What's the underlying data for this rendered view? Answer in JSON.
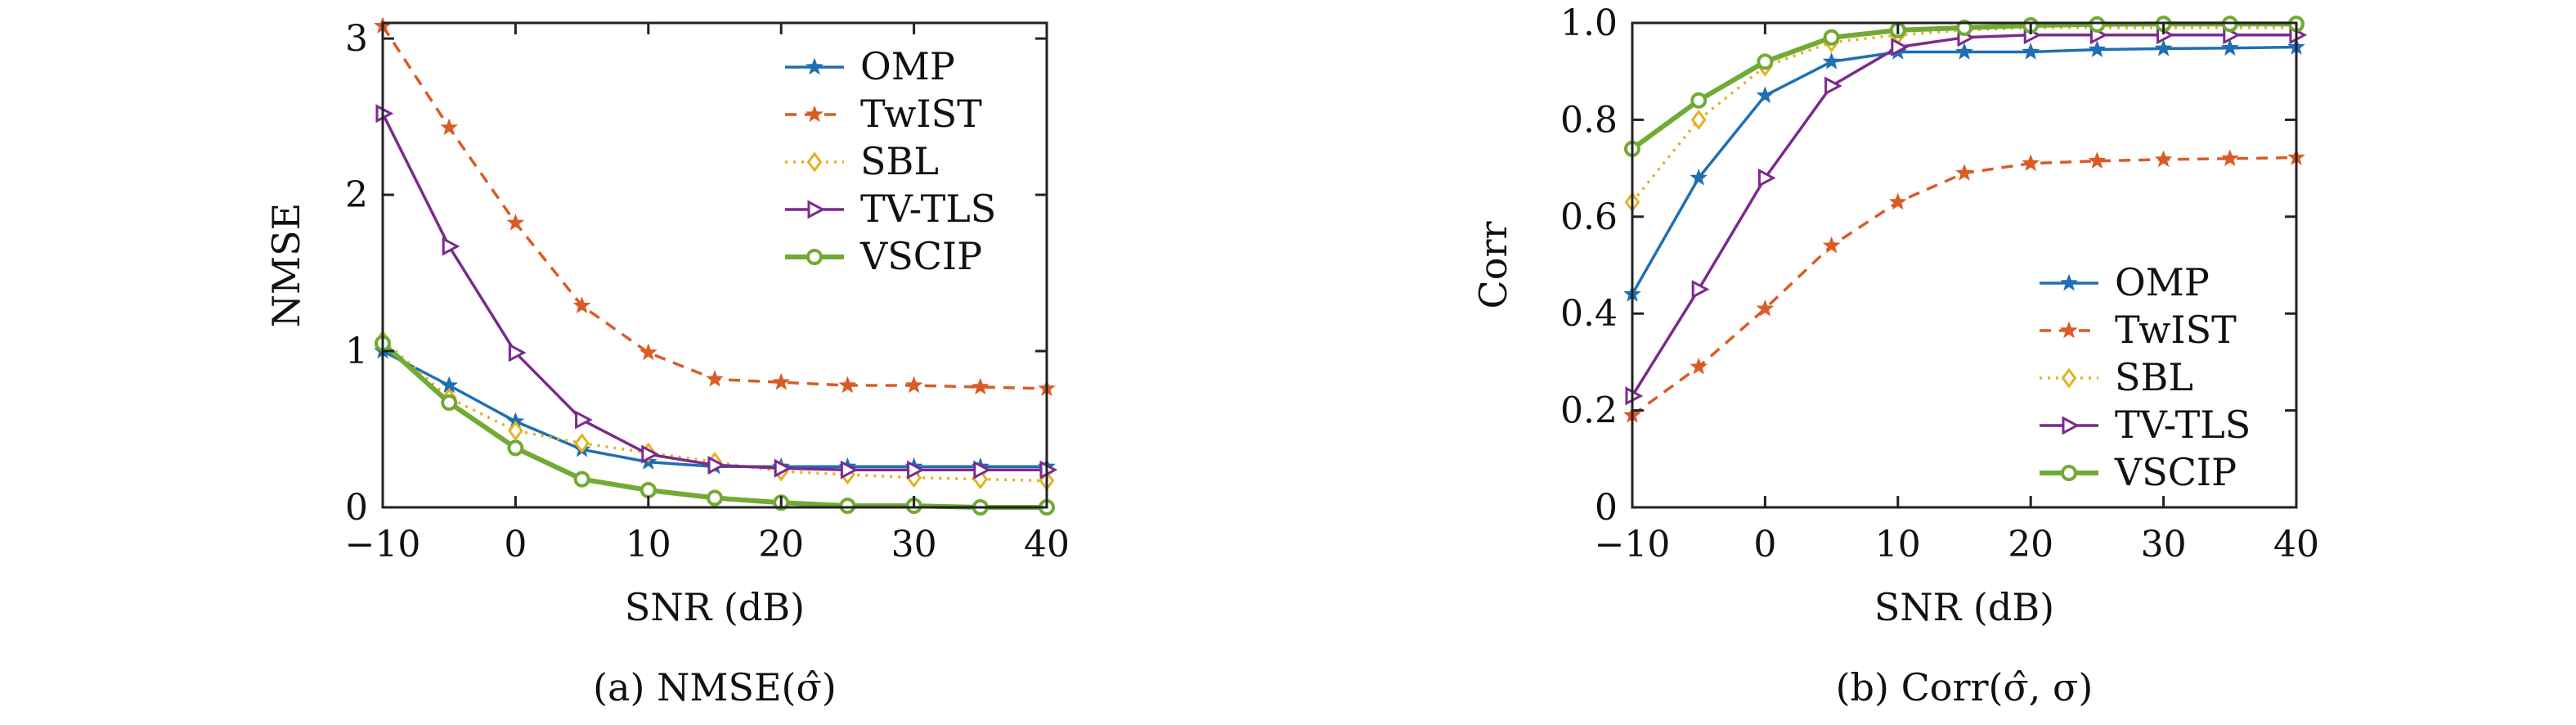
{
  "series_styles": {
    "OMP": {
      "color": "#1f6fb4",
      "dash": "",
      "marker": "star",
      "width": 3.5
    },
    "TwIST": {
      "color": "#d95c26",
      "dash": "14,10",
      "marker": "star",
      "width": 3.5
    },
    "SBL": {
      "color": "#e5b120",
      "dash": "3,7",
      "marker": "diamond",
      "width": 3.5
    },
    "TV-TLS": {
      "color": "#7b2a8e",
      "dash": "",
      "marker": "triangle",
      "width": 3.5
    },
    "VSCIP": {
      "color": "#72aa36",
      "dash": "",
      "marker": "circle",
      "width": 6
    }
  },
  "chart_data": [
    {
      "type": "line",
      "caption": "(a) NMSE(σ̂)",
      "xlabel": "SNR (dB)",
      "ylabel": "NMSE",
      "xlim": [
        -10,
        40
      ],
      "ylim": [
        0,
        3.1
      ],
      "xticks": [
        -10,
        0,
        10,
        20,
        30,
        40
      ],
      "xtick_labels": [
        "−10",
        "0",
        "10",
        "20",
        "30",
        "40"
      ],
      "yticks": [
        0,
        1,
        2,
        3
      ],
      "ytick_labels": [
        "0",
        "1",
        "2",
        "3"
      ],
      "legend_position": "top-right",
      "x": [
        -10,
        -5,
        0,
        5,
        10,
        15,
        20,
        25,
        30,
        35,
        40
      ],
      "series": [
        {
          "name": "OMP",
          "values": [
            1.0,
            0.78,
            0.55,
            0.37,
            0.29,
            0.26,
            0.26,
            0.26,
            0.26,
            0.26,
            0.26
          ]
        },
        {
          "name": "TwIST",
          "values": [
            3.08,
            2.43,
            1.82,
            1.29,
            0.99,
            0.82,
            0.8,
            0.78,
            0.78,
            0.77,
            0.76
          ]
        },
        {
          "name": "SBL",
          "values": [
            1.07,
            0.7,
            0.49,
            0.41,
            0.35,
            0.29,
            0.23,
            0.21,
            0.19,
            0.18,
            0.17
          ]
        },
        {
          "name": "TV-TLS",
          "values": [
            2.52,
            1.67,
            0.99,
            0.56,
            0.34,
            0.27,
            0.25,
            0.24,
            0.24,
            0.24,
            0.24
          ]
        },
        {
          "name": "VSCIP",
          "values": [
            1.05,
            0.67,
            0.38,
            0.18,
            0.11,
            0.06,
            0.03,
            0.01,
            0.01,
            0.0,
            0.0
          ]
        }
      ]
    },
    {
      "type": "line",
      "caption": "(b) Corr(σ̂, σ)",
      "xlabel": "SNR (dB)",
      "ylabel": "Corr",
      "xlim": [
        -10,
        40
      ],
      "ylim": [
        0,
        1.0
      ],
      "xticks": [
        -10,
        0,
        10,
        20,
        30,
        40
      ],
      "xtick_labels": [
        "−10",
        "0",
        "10",
        "20",
        "30",
        "40"
      ],
      "yticks": [
        0,
        0.2,
        0.4,
        0.6,
        0.8,
        1.0
      ],
      "ytick_labels": [
        "0",
        "0.2",
        "0.4",
        "0.6",
        "0.8",
        "1.0"
      ],
      "legend_position": "bottom-right",
      "x": [
        -10,
        -5,
        0,
        5,
        10,
        15,
        20,
        25,
        30,
        35,
        40
      ],
      "series": [
        {
          "name": "OMP",
          "values": [
            0.44,
            0.68,
            0.85,
            0.92,
            0.94,
            0.94,
            0.94,
            0.945,
            0.947,
            0.948,
            0.95
          ]
        },
        {
          "name": "TwIST",
          "values": [
            0.19,
            0.29,
            0.41,
            0.54,
            0.63,
            0.69,
            0.71,
            0.715,
            0.718,
            0.72,
            0.722
          ]
        },
        {
          "name": "SBL",
          "values": [
            0.63,
            0.8,
            0.91,
            0.96,
            0.975,
            0.985,
            0.99,
            0.99,
            0.99,
            0.99,
            0.99
          ]
        },
        {
          "name": "TV-TLS",
          "values": [
            0.23,
            0.45,
            0.68,
            0.87,
            0.95,
            0.97,
            0.975,
            0.975,
            0.975,
            0.975,
            0.975
          ]
        },
        {
          "name": "VSCIP",
          "values": [
            0.74,
            0.84,
            0.92,
            0.97,
            0.985,
            0.99,
            0.995,
            0.997,
            0.998,
            0.998,
            0.998
          ]
        }
      ]
    }
  ]
}
